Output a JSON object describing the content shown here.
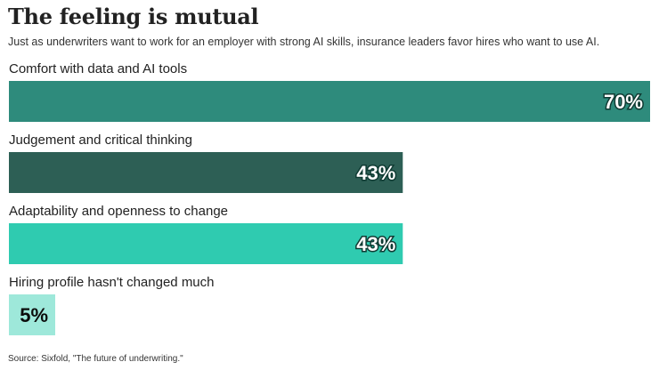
{
  "title": "The feeling is mutual",
  "subtitle": "Just as underwriters want to work for an employer with strong AI skills, insurance leaders favor hires who want to use AI.",
  "source": "Source: Sixfold, \"The future of underwriting.\"",
  "chart_data": {
    "type": "bar",
    "orientation": "horizontal",
    "title": "The feeling is mutual",
    "categories": [
      "Comfort with data and AI tools",
      "Judgement and critical thinking",
      "Adaptability and openness to change",
      "Hiring profile hasn't changed much"
    ],
    "values": [
      70,
      43,
      43,
      5
    ],
    "value_labels": [
      "70%",
      "43%",
      "43%",
      "5%"
    ],
    "colors": [
      "#2e8b7c",
      "#2d5f55",
      "#2fcbb0",
      "#9ee8da"
    ],
    "xlim": [
      0,
      70
    ],
    "grid": false,
    "legend": "none"
  }
}
